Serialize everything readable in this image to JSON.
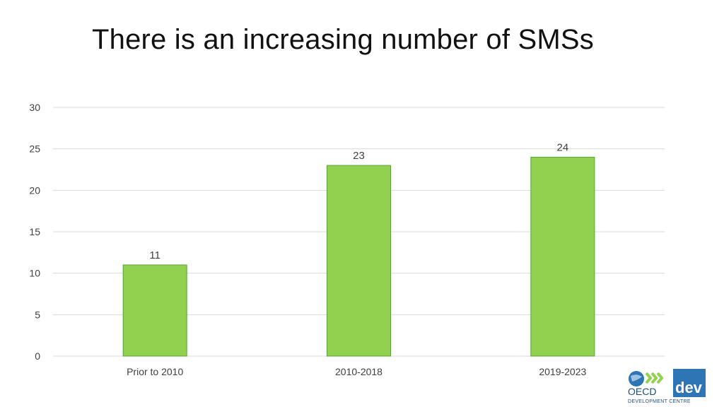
{
  "slide": {
    "title": "There is an increasing number of SMSs"
  },
  "logo": {
    "org": "OECD",
    "unit": "dev",
    "caption": "DEVELOPMENT CENTRE"
  },
  "chart_data": {
    "type": "bar",
    "title": "",
    "xlabel": "",
    "ylabel": "",
    "categories": [
      "Prior to 2010",
      "2010-2018",
      "2019-2023"
    ],
    "values": [
      11,
      23,
      24
    ],
    "ylim": [
      0,
      30
    ],
    "yticks": [
      0,
      5,
      10,
      15,
      20,
      25,
      30
    ],
    "grid": true,
    "legend": "none",
    "colors": {
      "bar_fill": "#92d050",
      "bar_stroke": "#5aa33a",
      "grid": "#d9d9d9",
      "text": "#404040"
    }
  }
}
